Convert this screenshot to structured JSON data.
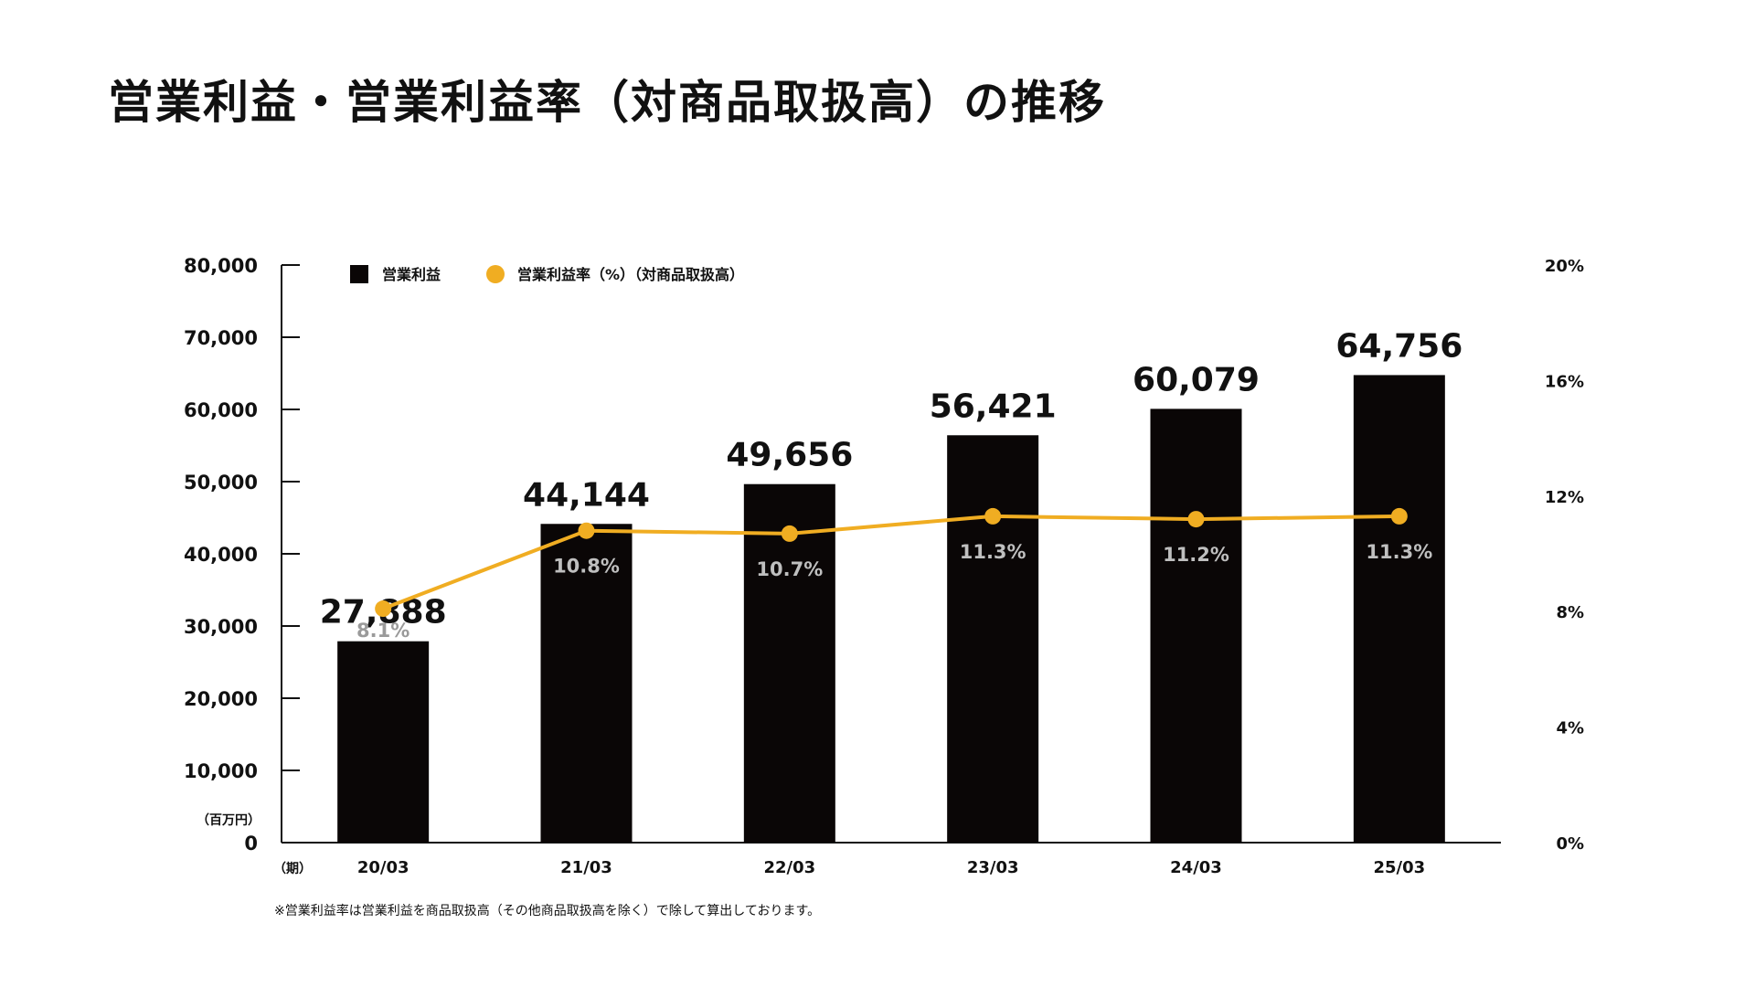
{
  "title": "営業利益・営業利益率（対商品取扱高）の推移",
  "footnote": "※営業利益率は営業利益を商品取扱高（その他商品取扱高を除く）で除して算出しております。",
  "chart_data": {
    "type": "bar",
    "categories": [
      "20/03",
      "21/03",
      "22/03",
      "23/03",
      "24/03",
      "25/03"
    ],
    "series": [
      {
        "name": "営業利益",
        "type": "bar",
        "axis": "left",
        "values": [
          27888,
          44144,
          49656,
          56421,
          60079,
          64756
        ],
        "labels": [
          "27,888",
          "44,144",
          "49,656",
          "56,421",
          "60,079",
          "64,756"
        ],
        "color": "#0a0606"
      },
      {
        "name": "営業利益率（%）（対商品取扱高）",
        "type": "line",
        "axis": "right",
        "values": [
          8.1,
          10.8,
          10.7,
          11.3,
          11.2,
          11.3
        ],
        "labels": [
          "8.1%",
          "10.8%",
          "10.7%",
          "11.3%",
          "11.2%",
          "11.3%"
        ],
        "color": "#f0ad22"
      }
    ],
    "left_axis": {
      "unit": "（百万円）",
      "ylim": [
        0,
        80000
      ],
      "ticks": [
        0,
        10000,
        20000,
        30000,
        40000,
        50000,
        60000,
        70000,
        80000
      ],
      "tick_labels": [
        "0",
        "10,000",
        "20,000",
        "30,000",
        "40,000",
        "50,000",
        "60,000",
        "70,000",
        "80,000"
      ]
    },
    "right_axis": {
      "ylim": [
        0,
        20
      ],
      "ticks": [
        0,
        4,
        8,
        12,
        16,
        20
      ],
      "tick_labels": [
        "0%",
        "4%",
        "8%",
        "12%",
        "16%",
        "20%"
      ]
    },
    "x_unit": "（期）",
    "legend_position": "top-left",
    "grid": false,
    "label_color_on_bar": "#bfbfbf",
    "label_color_outside": "#9a9a9a"
  }
}
